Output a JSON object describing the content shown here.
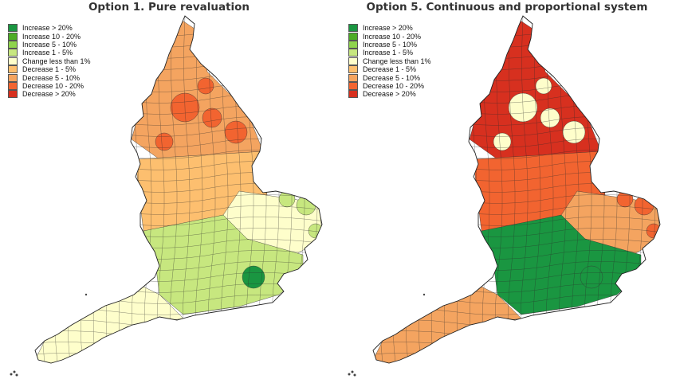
{
  "panels": [
    {
      "id": "option1",
      "title": "Option 1. Pure revaluation",
      "legend": [
        {
          "label": "Increase > 20%",
          "color": "#1a9641"
        },
        {
          "label": "Increase 10 - 20%",
          "color": "#4dac26"
        },
        {
          "label": "Increase 5 - 10%",
          "color": "#8fd44d"
        },
        {
          "label": "Increase 1 - 5%",
          "color": "#c7e77f"
        },
        {
          "label": "Change less than 1%",
          "color": "#fefecb"
        },
        {
          "label": "Decrease 1 - 5%",
          "color": "#fdbf6f"
        },
        {
          "label": "Decrease 5 - 10%",
          "color": "#f4a460"
        },
        {
          "label": "Decrease 10 - 20%",
          "color": "#f26430"
        },
        {
          "label": "Decrease > 20%",
          "color": "#d7301f"
        }
      ],
      "regions": {
        "north": "Decrease 5 - 10%",
        "north_hotspots": "Decrease 10 - 20%",
        "midlands": "Decrease 1 - 5%",
        "east": "Change less than 1%",
        "east_edge": "Increase 1 - 5%",
        "south_east": "Increase 1 - 5%",
        "london": "Increase > 20%",
        "south_west": "Change less than 1%"
      }
    },
    {
      "id": "option5",
      "title": "Option 5. Continuous and proportional system",
      "legend": [
        {
          "label": "Increase > 20%",
          "color": "#1a9641"
        },
        {
          "label": "Increase 10 - 20%",
          "color": "#4dac26"
        },
        {
          "label": "Increase 5 - 10%",
          "color": "#8fd44d"
        },
        {
          "label": "Increase 1 - 5%",
          "color": "#c7e77f"
        },
        {
          "label": "Change less than 1%",
          "color": "#fefecb"
        },
        {
          "label": "Decrease 1 - 5%",
          "color": "#fdbf6f"
        },
        {
          "label": "Decrease 5 - 10%",
          "color": "#f4a460"
        },
        {
          "label": "Decrease 10 - 20%",
          "color": "#f26430"
        },
        {
          "label": "Decrease > 20%",
          "color": "#d7301f"
        }
      ],
      "regions": {
        "north": "Decrease > 20%",
        "north_hotspots": "Change less than 1%",
        "midlands": "Decrease 10 - 20%",
        "east": "Decrease 5 - 10%",
        "east_edge": "Decrease 10 - 20%",
        "south_east": "Increase > 20%",
        "london": "Increase > 20%",
        "south_west": "Decrease 5 - 10%"
      }
    }
  ]
}
